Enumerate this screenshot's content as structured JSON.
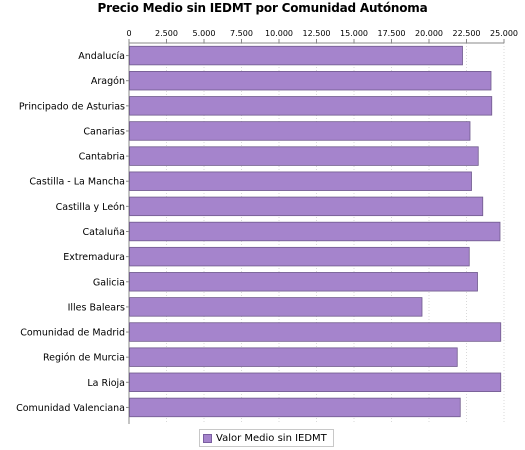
{
  "chart_data": {
    "type": "bar",
    "orientation": "horizontal",
    "title": "Precio Medio sin IEDMT por Comunidad Autónoma",
    "x_ticks": [
      "0",
      "2.500",
      "5.000",
      "7.500",
      "10.000",
      "12.500",
      "15.000",
      "17.500",
      "20.000",
      "22.500",
      "25.000"
    ],
    "xlim": [
      0,
      25000
    ],
    "grid": true,
    "legend_position": "bottom",
    "categories": [
      "Andalucía",
      "Aragón",
      "Principado de Asturias",
      "Canarias",
      "Cantabria",
      "Castilla - La Mancha",
      "Castilla y León",
      "Cataluña",
      "Extremadura",
      "Galicia",
      "Illes Balears",
      "Comunidad de Madrid",
      "Región de Murcia",
      "La Rioja",
      "Comunidad Valenciana"
    ],
    "series": [
      {
        "name": "Valor Medio sin IEDMT",
        "color": "#a584cc",
        "values": [
          22200,
          24100,
          24150,
          22700,
          23250,
          22800,
          23550,
          24700,
          22650,
          23200,
          19500,
          24750,
          21850,
          24750,
          22050
        ]
      }
    ]
  }
}
